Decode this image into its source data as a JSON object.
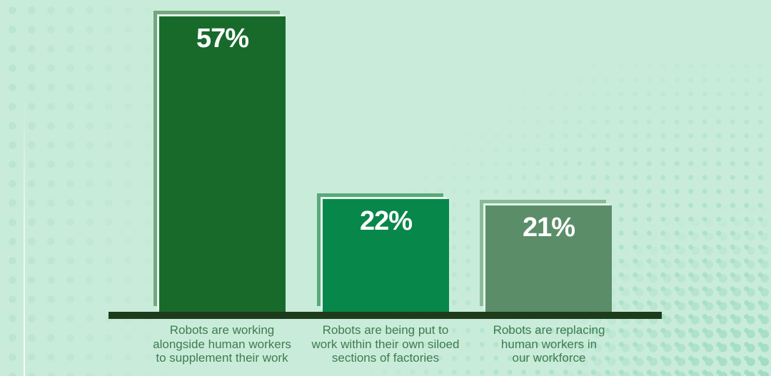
{
  "chart_data": {
    "type": "bar",
    "orientation": "vertical",
    "title": "",
    "xlabel": "",
    "ylabel": "",
    "ylim": [
      0,
      60
    ],
    "grid": false,
    "legend": false,
    "categories": [
      "Robots are working alongside human workers to supplement their work",
      "Robots are being put to work within their own siloed sections of factories",
      "Robots are replacing human workers in our workforce"
    ],
    "values": [
      57,
      22,
      21
    ],
    "value_labels": [
      "57%",
      "22%",
      "21%"
    ],
    "unit": "percent",
    "bar_colors": [
      "#186a2b",
      "#07874a",
      "#5b8e68"
    ],
    "bar_shadow_colors": [
      "#74a77f",
      "#5aa87b",
      "#8abb99"
    ]
  },
  "bars": [
    {
      "value_label": "57%",
      "label_lines": [
        "Robots are working",
        "alongside human workers",
        "to supplement their work"
      ]
    },
    {
      "value_label": "22%",
      "label_lines": [
        "Robots are being put to",
        "work within their own siloed",
        "sections of factories"
      ]
    },
    {
      "value_label": "21%",
      "label_lines": [
        "Robots are replacing",
        "human workers in",
        "our workforce"
      ]
    }
  ],
  "colors": {
    "background": "#c9ecda",
    "baseline": "#1e3c1c",
    "category_text": "#3e7b50",
    "value_text": "#ffffff",
    "dots_left": "#b9e4cc",
    "dots_right": "#9edcc0",
    "bar_outline_gap": "#e2f6ea"
  }
}
